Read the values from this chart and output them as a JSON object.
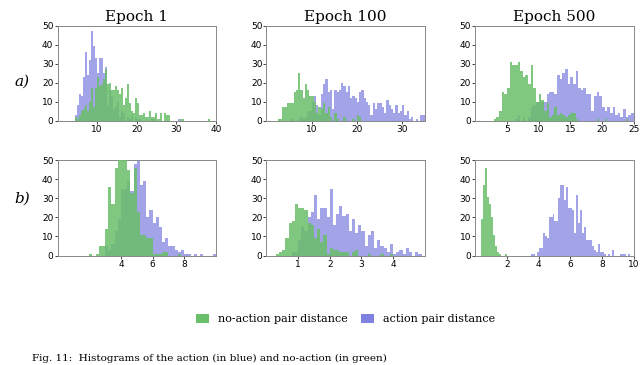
{
  "title_cols": [
    "Epoch 1",
    "Epoch 100",
    "Epoch 500"
  ],
  "row_labels": [
    "a)",
    "b)"
  ],
  "color_noaction": "#6abf69",
  "color_action": "#8080e0",
  "legend_noaction": "no-action pair distance",
  "legend_action": "action pair distance",
  "caption": "Fig. 11:  Histograms of the action (in blue) and no-action (in green)",
  "ylim": [
    0,
    50
  ],
  "yticks": [
    0,
    10,
    20,
    30,
    40,
    50
  ],
  "figsize": [
    6.4,
    3.65
  ],
  "dpi": 100,
  "title_fontsize": 11,
  "tick_fontsize": 6.5,
  "legend_fontsize": 8
}
